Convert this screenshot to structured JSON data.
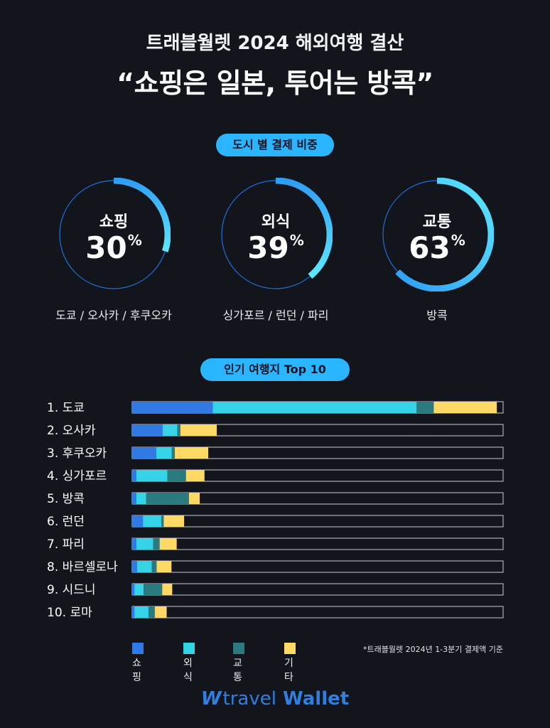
{
  "header": {
    "subtitle": "트래블월렛 2024 해외여행 결산",
    "headline": "“쇼핑은 일본, 투어는 방콕”"
  },
  "section_city": {
    "label": "도시 별 결제 비중"
  },
  "gauges": [
    {
      "category": "쇼핑",
      "value": "30",
      "unit": "%",
      "fraction": 0.3,
      "cities": "도쿄 / 오사카 / 후쿠오카"
    },
    {
      "category": "외식",
      "value": "39",
      "unit": "%",
      "fraction": 0.39,
      "cities": "싱가포르 / 런던 / 파리"
    },
    {
      "category": "교통",
      "value": "63",
      "unit": "%",
      "fraction": 0.63,
      "cities": "방콕"
    }
  ],
  "section_top": {
    "label": "인기 여행지 Top 10"
  },
  "chart_data": {
    "type": "bar",
    "orientation": "horizontal",
    "stacked": true,
    "categories": [
      "1. 도쿄",
      "2. 오사카",
      "3. 후쿠오카",
      "4. 싱가포르",
      "5. 방콕",
      "6. 런던",
      "7. 파리",
      "8. 바르셀로나",
      "9. 시드니",
      "10.  로마"
    ],
    "series": [
      {
        "name": "쇼핑",
        "color": "#2f7ae5",
        "values": [
          21.7,
          8.2,
          6.5,
          1.1,
          1.1,
          2.9,
          1.1,
          1.3,
          0.6,
          0.6
        ]
      },
      {
        "name": "외식",
        "color": "#35d3e6",
        "values": [
          55.0,
          4.0,
          4.2,
          8.4,
          2.7,
          5.0,
          4.6,
          4.0,
          2.5,
          3.8
        ]
      },
      {
        "name": "교통",
        "color": "#2a7a7f",
        "values": [
          4.6,
          0.8,
          0.8,
          5.0,
          11.5,
          0.6,
          1.7,
          1.3,
          5.0,
          1.7
        ]
      },
      {
        "name": "기타",
        "color": "#ffd966",
        "values": [
          17.0,
          9.8,
          9.0,
          5.0,
          2.9,
          5.5,
          4.6,
          4.0,
          2.7,
          3.2
        ]
      }
    ],
    "xlim": [
      0,
      100
    ],
    "track_color": "#12151c",
    "track_border": "#c8ccd4"
  },
  "footnote": "*트래블월렛 2024년 1-3분기 결제액 기준",
  "logo": {
    "mark": "W",
    "text1": "travel",
    "text2": "Wallet"
  },
  "colors": {
    "background": "#12151c",
    "accent": "#2bb5ff",
    "gauge_ring": "#1f6fd6",
    "gauge_arc_start": "#2f9ef5",
    "gauge_arc_end": "#5ee8ff"
  }
}
